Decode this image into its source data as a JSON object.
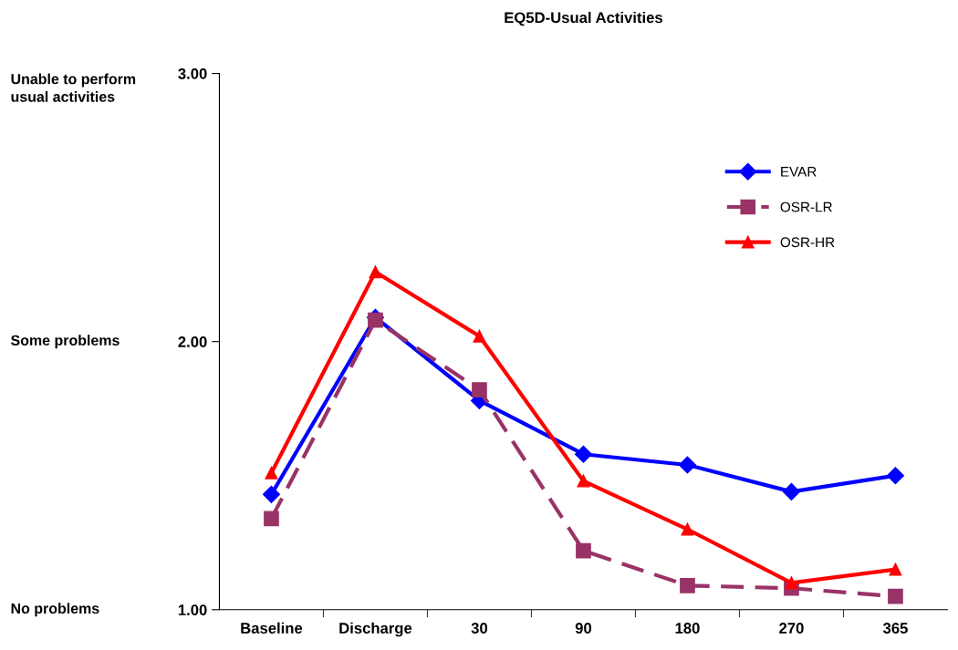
{
  "chart_data": {
    "type": "line",
    "title": "EQ5D-Usual Activities",
    "categories": [
      "Baseline",
      "Discharge",
      "30",
      "90",
      "180",
      "270",
      "365"
    ],
    "series": [
      {
        "name": "EVAR",
        "color": "#0000ff",
        "marker": "diamond",
        "line_style": "solid",
        "values": [
          1.43,
          2.09,
          1.78,
          1.58,
          1.54,
          1.44,
          1.5
        ]
      },
      {
        "name": "OSR-LR",
        "color": "#993366",
        "marker": "square",
        "line_style": "dashed",
        "values": [
          1.34,
          2.08,
          1.82,
          1.22,
          1.09,
          1.08,
          1.05
        ]
      },
      {
        "name": "OSR-HR",
        "color": "#ff0000",
        "marker": "triangle",
        "line_style": "solid",
        "values": [
          1.51,
          2.26,
          2.02,
          1.48,
          1.3,
          1.1,
          1.15
        ]
      }
    ],
    "ylim": [
      1,
      3
    ],
    "yticks": [
      {
        "value": 1,
        "label": "1.00"
      },
      {
        "value": 2,
        "label": "2.00"
      },
      {
        "value": 3,
        "label": "3.00"
      }
    ],
    "annotations": [
      "No problems",
      "Some problems",
      "Unable to perform\nusual activities"
    ],
    "grid": false,
    "legend": "top right"
  }
}
